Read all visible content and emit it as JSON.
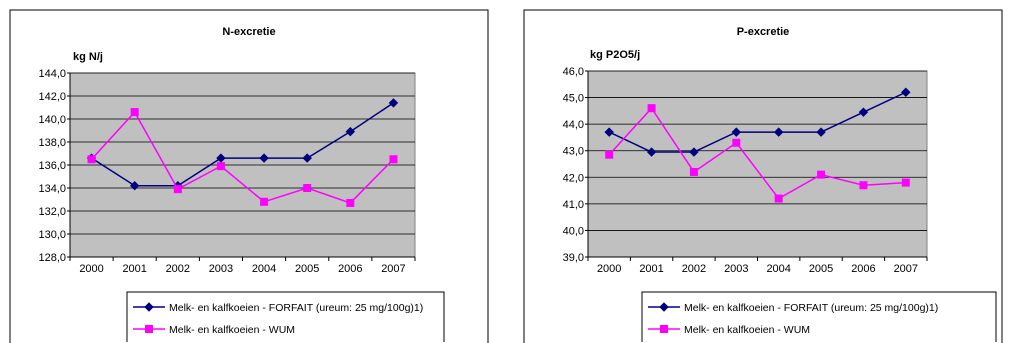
{
  "colors": {
    "plot_bg": "#c0c0c0",
    "series_1": "#000080",
    "series_2": "#ff00ff",
    "frame": "#000000"
  },
  "chart_data": [
    {
      "type": "line",
      "title": "N-excretie",
      "ylabel": "kg N/j",
      "xlabel": "",
      "categories": [
        "2000",
        "2001",
        "2002",
        "2003",
        "2004",
        "2005",
        "2006",
        "2007"
      ],
      "ylim": [
        128.0,
        144.0
      ],
      "yticks": [
        "144,0",
        "142,0",
        "140,0",
        "138,0",
        "136,0",
        "134,0",
        "132,0",
        "130,0",
        "128,0"
      ],
      "grid": true,
      "legend_position": "bottom",
      "series": [
        {
          "name": "Melk- en kalfkoeien - FORFAIT (ureum: 25 mg/100g)1)",
          "marker": "diamond",
          "values": [
            136.6,
            134.2,
            134.2,
            136.6,
            136.6,
            136.6,
            138.9,
            141.4
          ]
        },
        {
          "name": "Melk- en kalfkoeien - WUM",
          "marker": "square",
          "values": [
            136.5,
            140.6,
            133.9,
            135.9,
            132.8,
            134.0,
            132.7,
            136.5
          ]
        }
      ]
    },
    {
      "type": "line",
      "title": "P-excretie",
      "ylabel": "kg P2O5/j",
      "xlabel": "",
      "categories": [
        "2000",
        "2001",
        "2002",
        "2003",
        "2004",
        "2005",
        "2006",
        "2007"
      ],
      "ylim": [
        39.0,
        46.0
      ],
      "yticks": [
        "46,0",
        "45,0",
        "44,0",
        "43,0",
        "42,0",
        "41,0",
        "40,0",
        "39,0"
      ],
      "grid": true,
      "legend_position": "bottom",
      "series": [
        {
          "name": "Melk- en kalfkoeien - FORFAIT (ureum: 25 mg/100g)1)",
          "marker": "diamond",
          "values": [
            43.7,
            42.95,
            42.95,
            43.7,
            43.7,
            43.7,
            44.45,
            45.2
          ]
        },
        {
          "name": "Melk- en kalfkoeien - WUM",
          "marker": "square",
          "values": [
            42.85,
            44.6,
            42.2,
            43.3,
            41.2,
            42.1,
            41.7,
            41.8
          ]
        }
      ]
    }
  ]
}
